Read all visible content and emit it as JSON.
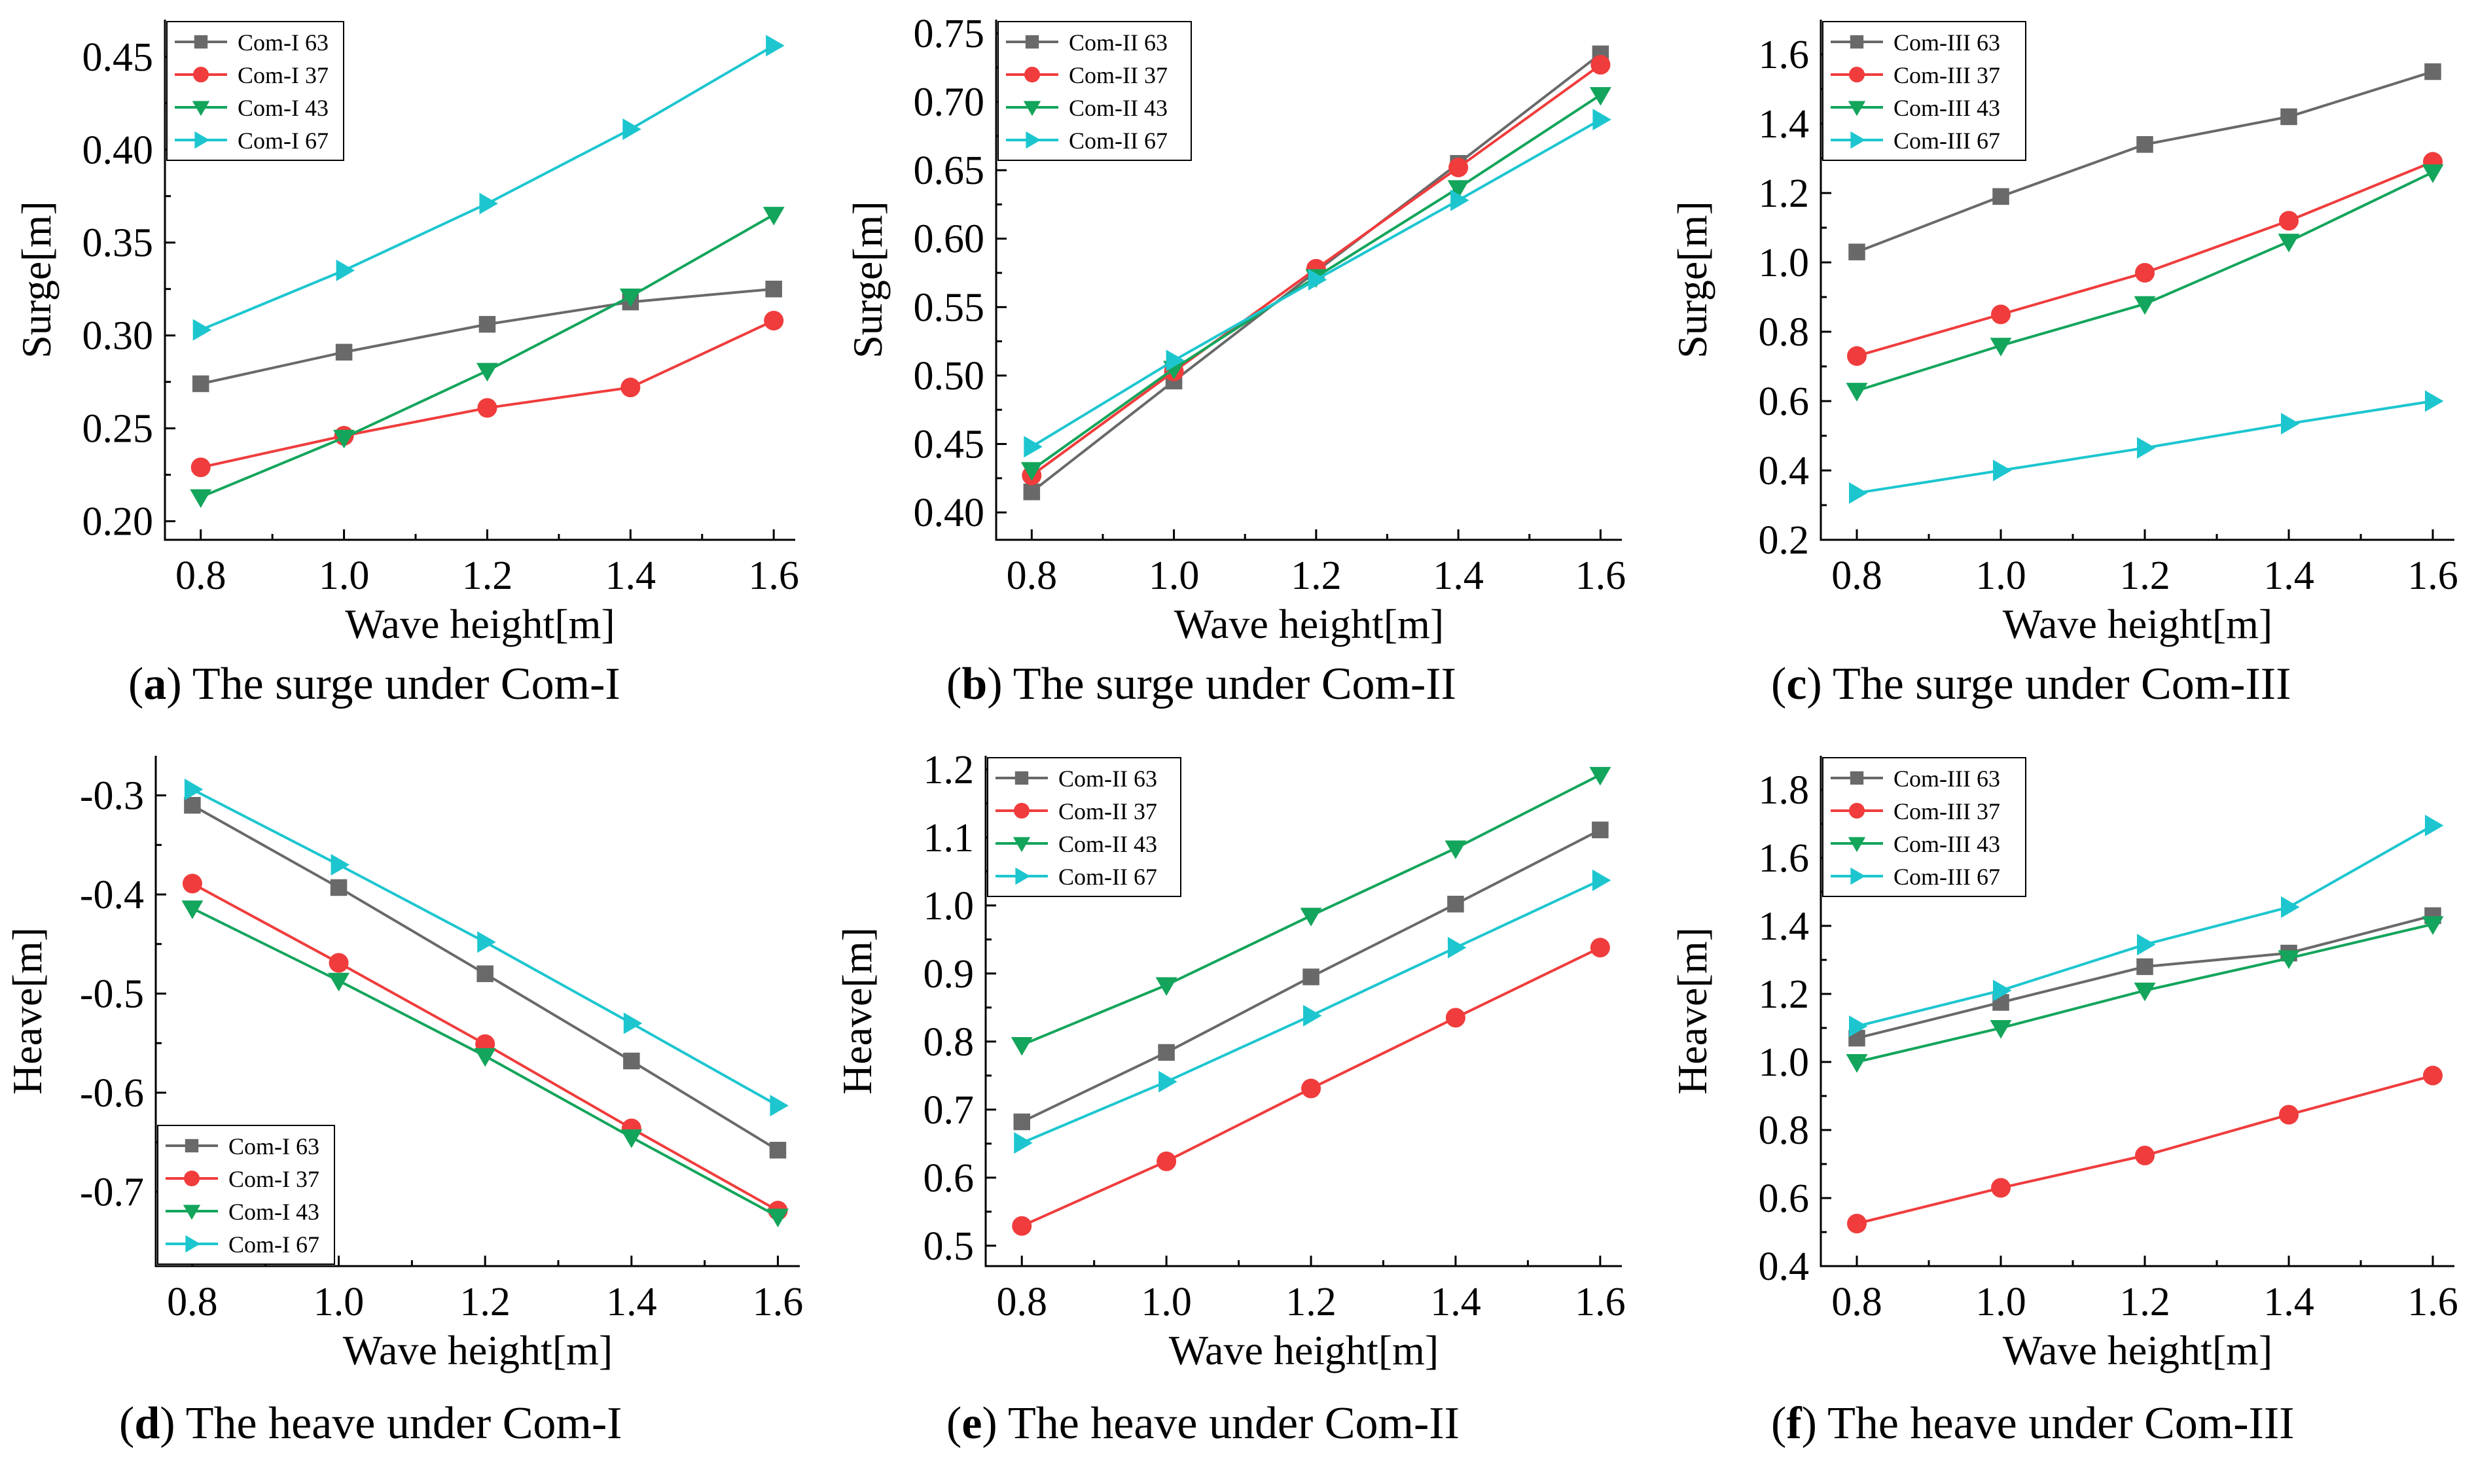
{
  "figure": {
    "series_colors": {
      "63": "#696969",
      "37": "#f03c3c",
      "43": "#13a55b",
      "67": "#1dc6cf"
    },
    "markers": {
      "63": "square",
      "37": "circle",
      "43": "triangle-down",
      "67": "triangle-right"
    }
  },
  "chart_data": [
    {
      "id": "a",
      "type": "line",
      "caption_letter": "a",
      "caption_text": " The surge under Com-I",
      "xlabel": "Wave height[m]",
      "ylabel": "Surge[m]",
      "x": [
        0.8,
        1.0,
        1.2,
        1.4,
        1.6
      ],
      "xlim": [
        0.75,
        1.63
      ],
      "ylim": [
        0.19,
        0.47
      ],
      "xticks": [
        "0.8",
        "1.0",
        "1.2",
        "1.4",
        "1.6"
      ],
      "yticks": [
        "0.20",
        "0.25",
        "0.30",
        "0.35",
        "0.40",
        "0.45"
      ],
      "legend_position": "top-left",
      "series": [
        {
          "name": "Com-I 63",
          "key": "63",
          "values": [
            0.274,
            0.291,
            0.306,
            0.318,
            0.325
          ]
        },
        {
          "name": "Com-I 37",
          "key": "37",
          "values": [
            0.229,
            0.246,
            0.261,
            0.272,
            0.308
          ]
        },
        {
          "name": "Com-I 43",
          "key": "43",
          "values": [
            0.213,
            0.245,
            0.281,
            0.321,
            0.365
          ]
        },
        {
          "name": "Com-I 67",
          "key": "67",
          "values": [
            0.303,
            0.335,
            0.371,
            0.411,
            0.456
          ]
        }
      ]
    },
    {
      "id": "b",
      "type": "line",
      "caption_letter": "b",
      "caption_text": " The surge under Com-II",
      "xlabel": "Wave height[m]",
      "ylabel": "Surge[m]",
      "x": [
        0.8,
        1.0,
        1.2,
        1.4,
        1.6
      ],
      "xlim": [
        0.75,
        1.63
      ],
      "ylim": [
        0.38,
        0.76
      ],
      "xticks": [
        "0.8",
        "1.0",
        "1.2",
        "1.4",
        "1.6"
      ],
      "yticks": [
        "0.40",
        "0.45",
        "0.50",
        "0.55",
        "0.60",
        "0.65",
        "0.70",
        "0.75"
      ],
      "legend_position": "top-left",
      "series": [
        {
          "name": "Com-II 63",
          "key": "63",
          "values": [
            0.415,
            0.496,
            0.576,
            0.655,
            0.735
          ]
        },
        {
          "name": "Com-II 37",
          "key": "37",
          "values": [
            0.427,
            0.503,
            0.578,
            0.652,
            0.727
          ]
        },
        {
          "name": "Com-II 43",
          "key": "43",
          "values": [
            0.431,
            0.505,
            0.572,
            0.637,
            0.705
          ]
        },
        {
          "name": "Com-II 67",
          "key": "67",
          "values": [
            0.448,
            0.511,
            0.57,
            0.628,
            0.687
          ]
        }
      ]
    },
    {
      "id": "c",
      "type": "line",
      "caption_letter": "c",
      "caption_text": " The surge under Com-III",
      "xlabel": "Wave height[m]",
      "ylabel": "Surge[m]",
      "x": [
        0.8,
        1.0,
        1.2,
        1.4,
        1.6
      ],
      "xlim": [
        0.75,
        1.63
      ],
      "ylim": [
        0.2,
        1.7
      ],
      "xticks": [
        "0.8",
        "1.0",
        "1.2",
        "1.4",
        "1.6"
      ],
      "yticks": [
        "0.2",
        "0.4",
        "0.6",
        "0.8",
        "1.0",
        "1.2",
        "1.4",
        "1.6"
      ],
      "legend_position": "top-left",
      "series": [
        {
          "name": "Com-III 63",
          "key": "63",
          "values": [
            1.03,
            1.19,
            1.34,
            1.42,
            1.55
          ]
        },
        {
          "name": "Com-III 37",
          "key": "37",
          "values": [
            0.73,
            0.85,
            0.97,
            1.12,
            1.29
          ]
        },
        {
          "name": "Com-III 43",
          "key": "43",
          "values": [
            0.63,
            0.76,
            0.88,
            1.06,
            1.26
          ]
        },
        {
          "name": "Com-III 67",
          "key": "67",
          "values": [
            0.335,
            0.4,
            0.465,
            0.535,
            0.6
          ]
        }
      ]
    },
    {
      "id": "d",
      "type": "line",
      "caption_letter": "d",
      "caption_text": " The heave under Com-I",
      "xlabel": "Wave height[m]",
      "ylabel": "Heave[m]",
      "x": [
        0.8,
        1.0,
        1.2,
        1.4,
        1.6
      ],
      "xlim": [
        0.75,
        1.63
      ],
      "ylim": [
        -0.775,
        -0.26
      ],
      "xticks": [
        "0.8",
        "1.0",
        "1.2",
        "1.4",
        "1.6"
      ],
      "yticks": [
        "-0.7",
        "-0.6",
        "-0.5",
        "-0.4",
        "-0.3"
      ],
      "legend_position": "bottom-left",
      "series": [
        {
          "name": "Com-I 63",
          "key": "63",
          "values": [
            -0.31,
            -0.393,
            -0.48,
            -0.568,
            -0.658
          ]
        },
        {
          "name": "Com-I 37",
          "key": "37",
          "values": [
            -0.389,
            -0.469,
            -0.551,
            -0.636,
            -0.719
          ]
        },
        {
          "name": "Com-I 43",
          "key": "43",
          "values": [
            -0.414,
            -0.487,
            -0.563,
            -0.645,
            -0.725
          ]
        },
        {
          "name": "Com-I 67",
          "key": "67",
          "values": [
            -0.294,
            -0.37,
            -0.448,
            -0.53,
            -0.613
          ]
        }
      ]
    },
    {
      "id": "e",
      "type": "line",
      "caption_letter": "e",
      "caption_text": " The heave under Com-II",
      "xlabel": "Wave height[m]",
      "ylabel": "Heave[m]",
      "x": [
        0.8,
        1.0,
        1.2,
        1.4,
        1.6
      ],
      "xlim": [
        0.75,
        1.63
      ],
      "ylim": [
        0.47,
        1.22
      ],
      "xticks": [
        "0.8",
        "1.0",
        "1.2",
        "1.4",
        "1.6"
      ],
      "yticks": [
        "0.5",
        "0.6",
        "0.7",
        "0.8",
        "0.9",
        "1.0",
        "1.1",
        "1.2"
      ],
      "legend_position": "top-left",
      "series": [
        {
          "name": "Com-II 63",
          "key": "63",
          "values": [
            0.682,
            0.784,
            0.895,
            1.002,
            1.111
          ]
        },
        {
          "name": "Com-II 37",
          "key": "37",
          "values": [
            0.529,
            0.624,
            0.731,
            0.835,
            0.938
          ]
        },
        {
          "name": "Com-II 43",
          "key": "43",
          "values": [
            0.795,
            0.883,
            0.985,
            1.084,
            1.192
          ]
        },
        {
          "name": "Com-II 67",
          "key": "67",
          "values": [
            0.651,
            0.741,
            0.838,
            0.938,
            1.037
          ]
        }
      ]
    },
    {
      "id": "f",
      "type": "line",
      "caption_letter": "f",
      "caption_text": " The heave under Com-III",
      "xlabel": "Wave height[m]",
      "ylabel": "Heave[m]",
      "x": [
        0.8,
        1.0,
        1.2,
        1.4,
        1.6
      ],
      "xlim": [
        0.75,
        1.63
      ],
      "ylim": [
        0.4,
        1.9
      ],
      "xticks": [
        "0.8",
        "1.0",
        "1.2",
        "1.4",
        "1.6"
      ],
      "yticks": [
        "0.4",
        "0.6",
        "0.8",
        "1.0",
        "1.2",
        "1.4",
        "1.6",
        "1.8"
      ],
      "legend_position": "top-left",
      "series": [
        {
          "name": "Com-III 63",
          "key": "63",
          "values": [
            1.07,
            1.175,
            1.28,
            1.32,
            1.43
          ]
        },
        {
          "name": "Com-III 37",
          "key": "37",
          "values": [
            0.525,
            0.63,
            0.725,
            0.845,
            0.96
          ]
        },
        {
          "name": "Com-III 43",
          "key": "43",
          "values": [
            1.0,
            1.1,
            1.21,
            1.305,
            1.405
          ]
        },
        {
          "name": "Com-III 67",
          "key": "67",
          "values": [
            1.105,
            1.21,
            1.345,
            1.455,
            1.695
          ]
        }
      ]
    }
  ]
}
